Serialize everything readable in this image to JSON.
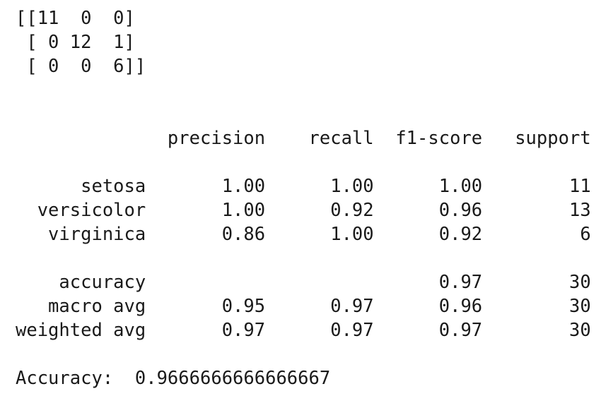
{
  "output": {
    "confusion_matrix": [
      "[[11  0  0]",
      " [ 0 12  1]",
      " [ 0  0  6]]"
    ],
    "report_header": "              precision    recall  f1-score   support",
    "report_rows": [
      "      setosa       1.00      1.00      1.00        11",
      "  versicolor       1.00      0.92      0.96        13",
      "   virginica       0.86      1.00      0.92         6"
    ],
    "summary_rows": [
      "    accuracy                           0.97        30",
      "   macro avg       0.95      0.97      0.96        30",
      "weighted avg       0.97      0.97      0.97        30"
    ],
    "accuracy_line": "Accuracy:  0.9666666666666667"
  }
}
